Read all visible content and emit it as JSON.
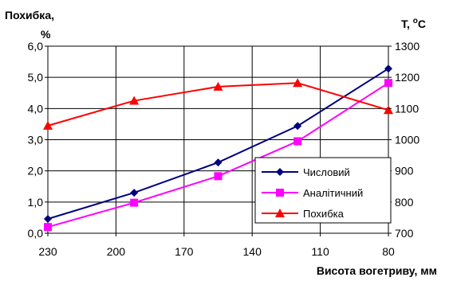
{
  "chart_data": {
    "type": "line",
    "x": [
      230,
      192,
      155,
      120,
      80
    ],
    "xlabel": "Висота вогетриву, мм",
    "x_ticks": [
      "230",
      "200",
      "170",
      "140",
      "110",
      "80"
    ],
    "x_tick_values": [
      230,
      200,
      170,
      140,
      110,
      80
    ],
    "xlim": [
      230,
      80
    ],
    "y_left": {
      "label_line1": "Похибка,",
      "label_line2": "%",
      "ylim": [
        0,
        6
      ],
      "ticks": [
        "0,0",
        "1,0",
        "2,0",
        "3,0",
        "4,0",
        "5,0",
        "6,0"
      ],
      "tick_values": [
        0,
        1,
        2,
        3,
        4,
        5,
        6
      ]
    },
    "y_right": {
      "label_main": "T, ",
      "label_sup": "o",
      "label_unit": "C",
      "ylim": [
        700,
        1300
      ],
      "ticks": [
        "700",
        "800",
        "900",
        "1000",
        "1100",
        "1200",
        "1300"
      ],
      "tick_values": [
        700,
        800,
        900,
        1000,
        1100,
        1200,
        1300
      ]
    },
    "series": [
      {
        "name": "Числовий",
        "axis": "right",
        "color": "#000080",
        "marker": "diamond",
        "values": [
          746,
          830,
          927,
          1044,
          1228
        ]
      },
      {
        "name": "Аналітичний",
        "axis": "right",
        "color": "#ff00ff",
        "marker": "square",
        "values": [
          720,
          798,
          883,
          995,
          1182
        ]
      },
      {
        "name": "Похибка",
        "axis": "left",
        "color": "#ff0000",
        "marker": "triangle",
        "values": [
          3.45,
          4.25,
          4.7,
          4.82,
          3.95
        ]
      }
    ],
    "grid": true,
    "legend_position": "bottom-right"
  }
}
